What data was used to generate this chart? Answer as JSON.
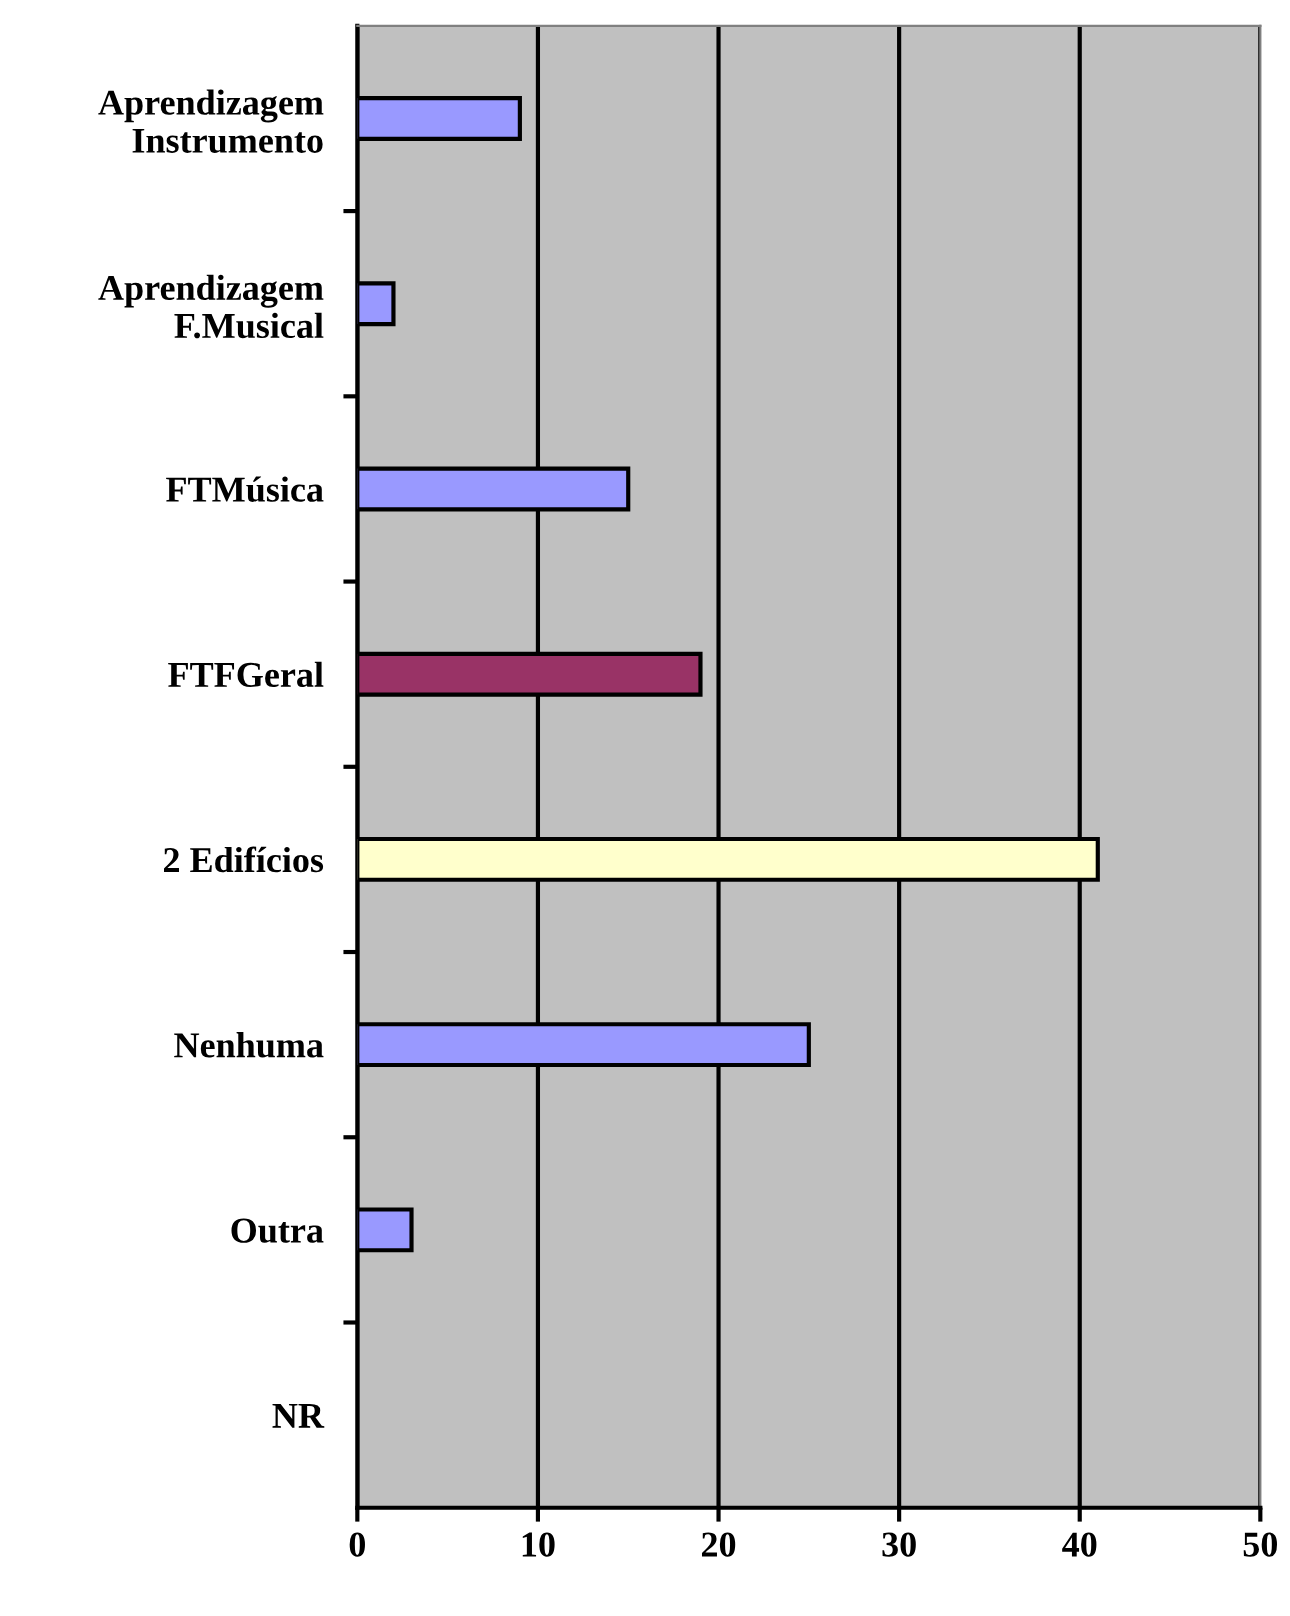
{
  "chart_data": {
    "type": "bar",
    "orientation": "horizontal",
    "categories": [
      "Aprendizagem\nInstrumento",
      "Aprendizagem\nF.Musical",
      "FTMúsica",
      "FTFGeral",
      "2 Edifícios",
      "Nenhuma",
      "Outra",
      "NR"
    ],
    "values": [
      9,
      2,
      15,
      19,
      41,
      25,
      3,
      null
    ],
    "colors": [
      "#9999ff",
      "#9999ff",
      "#9999ff",
      "#993366",
      "#ffffcc",
      "#9999ff",
      "#9999ff",
      null
    ],
    "xlim": [
      0,
      50
    ],
    "xticks": [
      0,
      10,
      20,
      30,
      40,
      50
    ],
    "grid": "x"
  }
}
